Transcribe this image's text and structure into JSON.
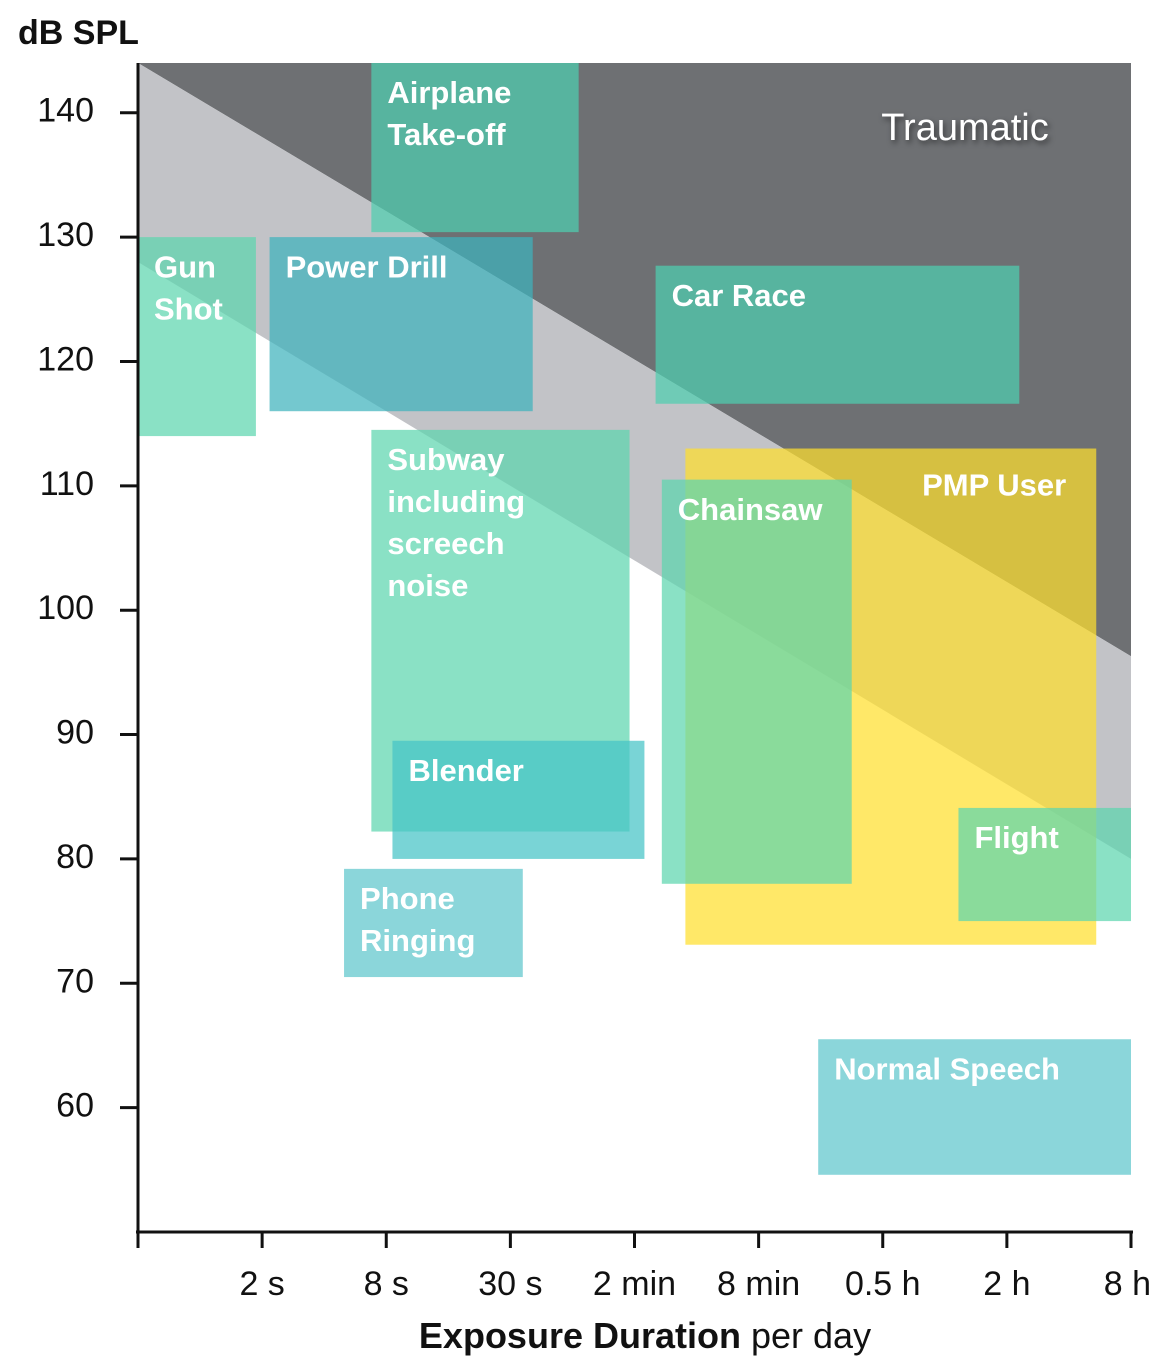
{
  "chart_data": {
    "type": "range-box",
    "ylabel": "dB SPL",
    "xlabel": "Exposure Duration",
    "xlabel_suffix": "per day",
    "xlim": [
      0,
      8
    ],
    "xticks": [
      {
        "value": 0,
        "label": null
      },
      {
        "value": 1,
        "label": "2 s"
      },
      {
        "value": 2,
        "label": "8 s"
      },
      {
        "value": 3,
        "label": "30 s"
      },
      {
        "value": 4,
        "label": "2 min"
      },
      {
        "value": 5,
        "label": "8 min"
      },
      {
        "value": 6,
        "label": "0.5 h"
      },
      {
        "value": 7,
        "label": "2 h"
      },
      {
        "value": 8,
        "label": "8 h"
      }
    ],
    "ylim": [
      50,
      144
    ],
    "yticks": [
      60,
      70,
      80,
      90,
      100,
      110,
      120,
      130,
      140
    ],
    "zones": [
      {
        "name": "Traumatic",
        "color": "#6e7073",
        "upper": [
          144,
          144
        ],
        "lower": [
          144,
          96.3
        ]
      },
      {
        "color": "#c2c3c7",
        "upper": [
          144,
          96.3
        ],
        "lower": [
          128,
          80
        ]
      }
    ],
    "boxes": [
      {
        "label": [
          "Airplane",
          "Take-off"
        ],
        "x": [
          1.88,
          3.55
        ],
        "y": [
          130.4,
          144
        ],
        "color": "#4fcfb0"
      },
      {
        "label": [
          "Gun",
          "Shot"
        ],
        "x": [
          0,
          0.95
        ],
        "y": [
          114,
          130
        ],
        "color": "#5dd6ae"
      },
      {
        "label": [
          "Power Drill"
        ],
        "x": [
          1.06,
          3.18
        ],
        "y": [
          116,
          130
        ],
        "color": "#3fb3bd"
      },
      {
        "label": [
          "Car Race"
        ],
        "x": [
          4.17,
          7.1
        ],
        "y": [
          116.6,
          127.7
        ],
        "color": "#4fcfb0"
      },
      {
        "label": [
          "Subway",
          "including",
          "screech",
          "noise"
        ],
        "x": [
          1.88,
          3.96
        ],
        "y": [
          82.2,
          114.5
        ],
        "color": "#5dd6ae"
      },
      {
        "label": [
          "Blender"
        ],
        "x": [
          2.05,
          4.08
        ],
        "y": [
          80,
          89.5
        ],
        "color": "#45c4c6"
      },
      {
        "label": [
          "PMP User"
        ],
        "x": [
          4.41,
          7.72
        ],
        "y": [
          73.1,
          113
        ],
        "color": "#ffdf2e",
        "label_align": "right"
      },
      {
        "label": [
          "Chainsaw"
        ],
        "x": [
          4.22,
          5.75
        ],
        "y": [
          78,
          110.5
        ],
        "color": "#5dd6ae"
      },
      {
        "label": [
          "Flight"
        ],
        "x": [
          6.61,
          8
        ],
        "y": [
          75,
          84.1
        ],
        "color": "#5dd6ae"
      },
      {
        "label": [
          "Phone",
          "Ringing"
        ],
        "x": [
          1.66,
          3.1
        ],
        "y": [
          70.5,
          79.2
        ],
        "color": "#5ec6cc"
      },
      {
        "label": [
          "Normal Speech"
        ],
        "x": [
          5.48,
          8
        ],
        "y": [
          54.6,
          65.5
        ],
        "color": "#5ec6cc"
      }
    ]
  }
}
